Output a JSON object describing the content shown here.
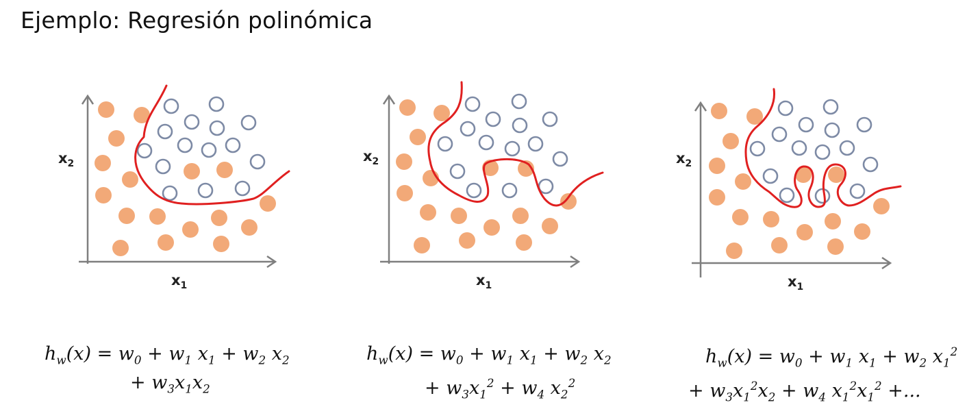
{
  "title": "Ejemplo: Regresión polinómica",
  "axes": {
    "x_label": "x",
    "x_sub": "1",
    "y_label": "x",
    "y_sub": "2"
  },
  "colors": {
    "class_filled": "#f2a978",
    "class_open": "#7d8aa5",
    "boundary": "#e02020",
    "axis": "#7f7f7f"
  },
  "formulas": [
    {
      "line1": "h_w(x) = w_0 + w_1 x_1 + w_2 x_2",
      "line2": "+ w_3x_1x_2"
    },
    {
      "line1": "h_w(x) = w_0 + w_1 x_1 + w_2 x_2",
      "line2": "+ w_3x_1^2 + w_4 x_2^2"
    },
    {
      "line1": "h_w(x) = w_0 + w_1 x_1 + w_2 x_1^2",
      "line2": "+ w_3x_1^2x_2 + w_4 x_1^2x_1^2 +..."
    }
  ]
}
